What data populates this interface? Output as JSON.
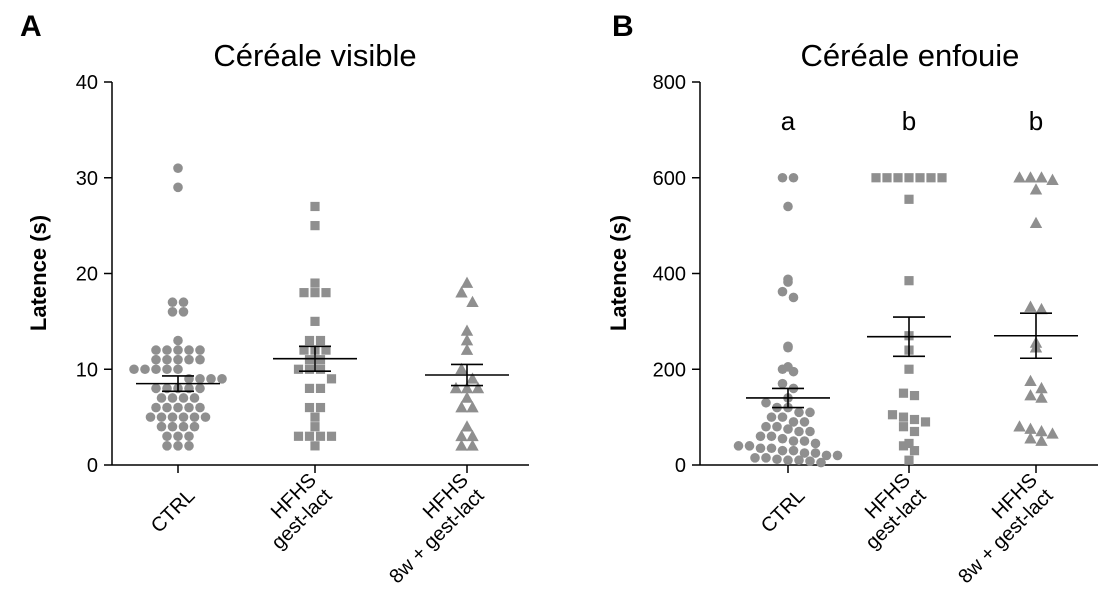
{
  "colors": {
    "points": "#8f8f8f",
    "axis": "#000000",
    "background": "#ffffff"
  },
  "chart_data": [
    {
      "type": "scatter",
      "panel": "A",
      "title": "Céréale visible",
      "xlabel": "",
      "ylabel": "Latence (s)",
      "ylim": [
        0,
        40
      ],
      "yticks": [
        0,
        10,
        20,
        30,
        40
      ],
      "grid": false,
      "categories": [
        {
          "lines": [
            "CTRL"
          ],
          "marker": "circle"
        },
        {
          "lines": [
            "HFHS",
            "gest-lact"
          ],
          "marker": "square"
        },
        {
          "lines": [
            "HFHS",
            "8w + gest-lact"
          ],
          "marker": "triangle"
        }
      ],
      "annotations": [
        "",
        "",
        ""
      ],
      "mean": [
        8.5,
        11.1,
        9.4
      ],
      "sem": [
        0.8,
        1.3,
        1.1
      ],
      "groups": [
        [
          31,
          29,
          17,
          17,
          16,
          16,
          13,
          12,
          12,
          12,
          12,
          12,
          11,
          11,
          11,
          11,
          11,
          10,
          10,
          10,
          10,
          10,
          9,
          9,
          9,
          9,
          8,
          8,
          8,
          8,
          8,
          7,
          7,
          7,
          7,
          6,
          6,
          6,
          6,
          6,
          5,
          5,
          5,
          5,
          5,
          5,
          4,
          4,
          4,
          4,
          3,
          3,
          3,
          2,
          2,
          2
        ],
        [
          27,
          25,
          19,
          18,
          18,
          18,
          15,
          13,
          13,
          12,
          12,
          12,
          11,
          11,
          10,
          10,
          10,
          9,
          8,
          8,
          6,
          6,
          5,
          4,
          3,
          3,
          3,
          3,
          2
        ],
        [
          19,
          18,
          17,
          14,
          13,
          12,
          10,
          9,
          8,
          8,
          8,
          7,
          6,
          6,
          4,
          3,
          3,
          2,
          2
        ]
      ]
    },
    {
      "type": "scatter",
      "panel": "B",
      "title": "Céréale enfouie",
      "xlabel": "",
      "ylabel": "Latence (s)",
      "ylim": [
        0,
        800
      ],
      "yticks": [
        0,
        200,
        400,
        600,
        800
      ],
      "grid": false,
      "categories": [
        {
          "lines": [
            "CTRL"
          ],
          "marker": "circle"
        },
        {
          "lines": [
            "HFHS",
            "gest-lact"
          ],
          "marker": "square"
        },
        {
          "lines": [
            "HFHS",
            "8w + gest-lact"
          ],
          "marker": "triangle"
        }
      ],
      "annotations": [
        "a",
        "b",
        "b"
      ],
      "mean": [
        140,
        268,
        270
      ],
      "sem": [
        20,
        41,
        47
      ],
      "groups": [
        [
          600,
          600,
          540,
          388,
          382,
          362,
          350,
          248,
          245,
          205,
          200,
          195,
          170,
          160,
          140,
          130,
          120,
          120,
          110,
          110,
          100,
          100,
          90,
          90,
          80,
          80,
          75,
          70,
          70,
          60,
          60,
          55,
          50,
          50,
          45,
          40,
          40,
          35,
          35,
          30,
          30,
          25,
          25,
          20,
          20,
          15,
          15,
          12,
          10,
          10,
          8,
          5
        ],
        [
          600,
          600,
          600,
          600,
          600,
          600,
          600,
          555,
          385,
          270,
          240,
          200,
          150,
          145,
          105,
          100,
          95,
          90,
          80,
          70,
          45,
          40,
          30,
          10
        ],
        [
          600,
          600,
          600,
          595,
          575,
          505,
          330,
          325,
          255,
          245,
          175,
          160,
          145,
          140,
          80,
          75,
          70,
          65,
          55,
          50
        ]
      ]
    }
  ]
}
